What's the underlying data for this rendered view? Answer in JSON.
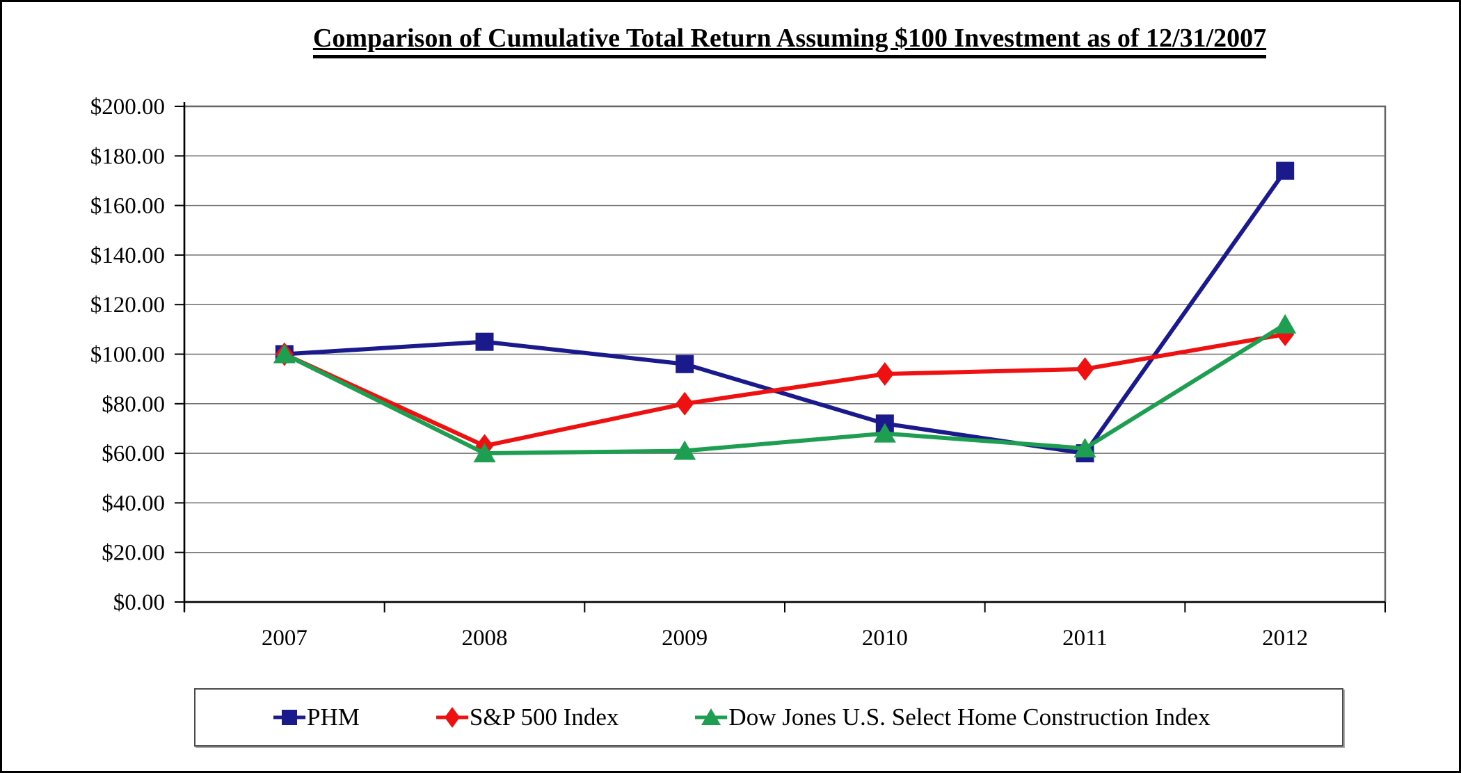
{
  "page": {
    "title": "Comparison of Cumulative Total Return Assuming $100 Investment as of 12/31/2007"
  },
  "chart_data": {
    "type": "line",
    "title": "Comparison of Cumulative Total Return Assuming $100 Investment as of 12/31/2007",
    "categories": [
      "2007",
      "2008",
      "2009",
      "2010",
      "2011",
      "2012"
    ],
    "series": [
      {
        "name": "PHM",
        "marker": "square",
        "color": "#1A1A8C",
        "values": [
          100,
          105,
          96,
          72,
          60,
          174
        ]
      },
      {
        "name": "S&P 500 Index",
        "marker": "diamond",
        "color": "#EE1111",
        "values": [
          100,
          63,
          80,
          92,
          94,
          108
        ]
      },
      {
        "name": "Dow Jones U.S. Select Home Construction Index",
        "marker": "triangle",
        "color": "#1E9E50",
        "values": [
          100,
          60,
          61,
          68,
          62,
          112
        ]
      }
    ],
    "ylim": [
      0,
      200
    ],
    "y_tick_step": 20,
    "y_tick_labels": [
      "$0.00",
      "$20.00",
      "$40.00",
      "$60.00",
      "$80.00",
      "$100.00",
      "$120.00",
      "$140.00",
      "$160.00",
      "$180.00",
      "$200.00"
    ],
    "xlabel": "",
    "ylabel": "",
    "grid": true,
    "legend_position": "bottom"
  },
  "colors": {
    "background": "#FFFFFF",
    "gridline": "#6E6E6E",
    "axis": "#000000",
    "plot_border": "#666666",
    "text": "#000000"
  }
}
